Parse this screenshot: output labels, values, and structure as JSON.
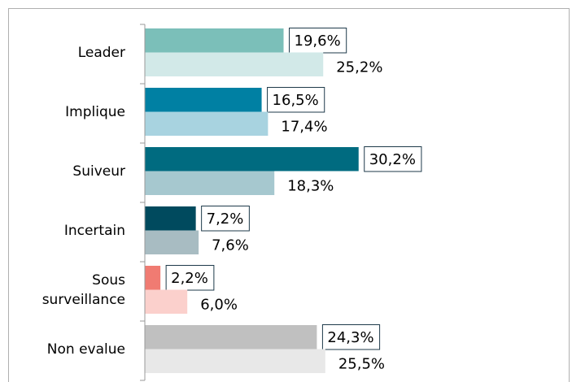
{
  "chart_data": {
    "type": "hbar-grouped",
    "categories": [
      "Leader",
      "Implique",
      "Suiveur",
      "Incertain",
      "Sous surveillance",
      "Non evalue"
    ],
    "xlim": [
      0,
      60
    ],
    "series": [
      {
        "values": [
          19.6,
          16.5,
          30.2,
          7.2,
          2.2,
          24.3
        ],
        "value_labels": [
          "19,6%",
          "16,5%",
          "30,2%",
          "7,2%",
          "2,2%",
          "24,3%"
        ],
        "colors": [
          "#7bbfb9",
          "#0080a3",
          "#006b80",
          "#004a5e",
          "#f07b72",
          "#c0c0c0"
        ]
      },
      {
        "values": [
          25.2,
          17.4,
          18.3,
          7.6,
          6.0,
          25.5
        ],
        "value_labels": [
          "25,2%",
          "17,4%",
          "18,3%",
          "7,6%",
          "6,0%",
          "25,5%"
        ],
        "colors": [
          "#d2e9e8",
          "#a8d3e0",
          "#a6c8cf",
          "#a8bcc2",
          "#fbd0cc",
          "#e8e8e8"
        ]
      }
    ]
  }
}
